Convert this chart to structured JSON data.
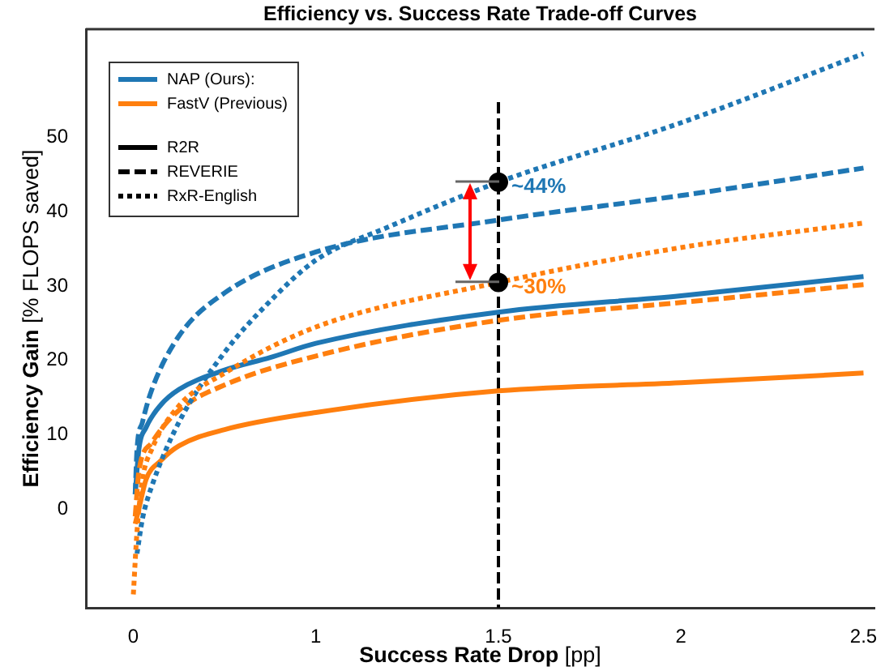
{
  "chart_data": {
    "type": "line",
    "title": "Efficiency vs. Success Rate Trade-off Curves",
    "xlabel": "Success Rate Drop [pp]",
    "ylabel": "Efficiency Gain [% FLOPS saved]",
    "xlim": [
      0.37,
      2.53
    ],
    "xticks": [
      {
        "value": 0.5,
        "label": "0"
      },
      1,
      1.5,
      2,
      2.5
    ],
    "ylim": [
      -13.3,
      64.6
    ],
    "yticks": [
      0,
      10,
      20,
      30,
      40,
      50
    ],
    "grid": false,
    "legend": "top left",
    "marker": "none",
    "series": [
      {
        "name": "NAP (Ours):",
        "color": "#1f77b4",
        "line_style": "solid",
        "x": [
          0.505,
          0.515,
          0.535,
          0.575,
          0.625,
          0.75,
          0.875,
          1,
          1.5,
          2,
          2.5
        ],
        "values": [
          2,
          8,
          11,
          14,
          16.1,
          18.7,
          20.4,
          22.3,
          26.5,
          28.7,
          31.3
        ]
      },
      {
        "name": "FastV (Previous)",
        "color": "#ff7f0e",
        "line_style": "solid",
        "x": [
          0.505,
          0.515,
          0.535,
          0.575,
          0.625,
          0.75,
          1,
          1.5,
          2,
          2.5
        ],
        "values": [
          -2,
          0,
          4,
          6.5,
          8.5,
          10.7,
          13,
          15.9,
          17,
          18.3
        ]
      },
      {
        "color": "#1f77b4",
        "line_style": "dashed",
        "x": [
          0.505,
          0.51,
          0.525,
          0.55,
          0.625,
          0.75,
          1,
          1.5,
          2,
          2.5
        ],
        "values": [
          2,
          8,
          11.7,
          16,
          23.3,
          29.1,
          34.6,
          38.9,
          42.2,
          45.9
        ]
      },
      {
        "color": "#ff7f0e",
        "line_style": "dashed",
        "x": [
          0.505,
          0.515,
          0.55,
          0.625,
          0.75,
          1,
          1.5,
          2,
          2.5
        ],
        "values": [
          -1,
          5,
          8.9,
          13.3,
          16.7,
          20.6,
          25.4,
          27.8,
          30.2
        ]
      },
      {
        "color": "#1f77b4",
        "line_style": "dotted",
        "x": [
          0.51,
          0.525,
          0.55,
          0.625,
          0.75,
          0.875,
          1,
          1.2,
          1.5,
          2,
          2.5
        ],
        "values": [
          -6,
          -1.3,
          3,
          11.7,
          21.1,
          28,
          33.5,
          38,
          44,
          52,
          61.3
        ]
      },
      {
        "color": "#ff7f0e",
        "line_style": "dotted",
        "x": [
          0.5,
          0.51,
          0.525,
          0.55,
          0.625,
          0.75,
          1,
          1.5,
          2,
          2.5
        ],
        "values": [
          -11.5,
          -3,
          4,
          8,
          13.9,
          18.3,
          24.5,
          30.5,
          35.2,
          38.5
        ]
      },
      {
        "type": "scatter",
        "color": "#000000",
        "marker": "circle",
        "x": [
          1.5,
          1.5
        ],
        "values": [
          44,
          30.5
        ]
      }
    ],
    "ref_lines": [
      {
        "axis": "x",
        "value": 1.5,
        "color": "#000000",
        "line_style": "dashed"
      }
    ],
    "annotations": [
      "R2R",
      "REVERIE",
      "RxR-English",
      {
        "text": "~44%",
        "x": 1.5,
        "y": 44
      },
      {
        "text": "~30%",
        "x": 1.5,
        "y": 30.5
      }
    ]
  }
}
